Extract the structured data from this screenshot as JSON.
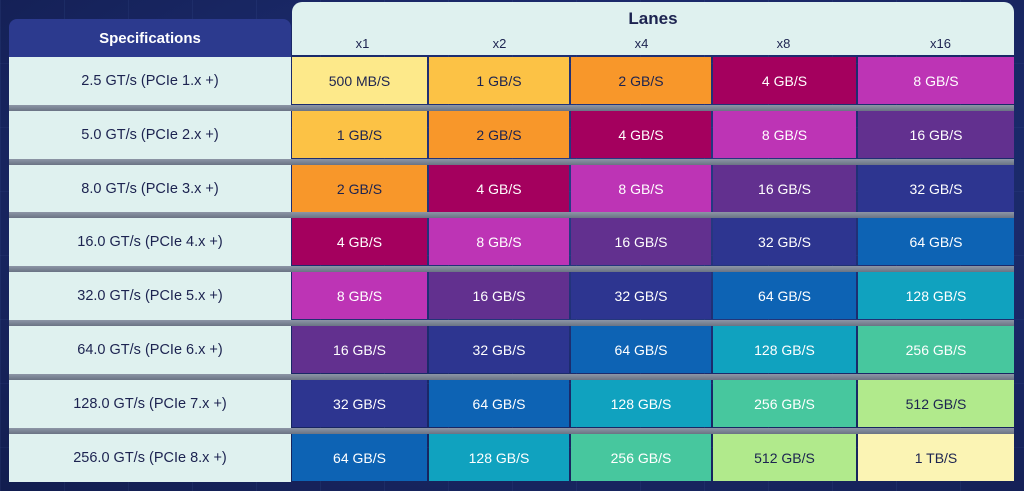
{
  "header": {
    "spec_label": "Specifications",
    "lanes_title": "Lanes",
    "lanes": [
      "x1",
      "x2",
      "x4",
      "x8",
      "x16"
    ]
  },
  "rows": [
    {
      "spec": "2.5 GT/s (PCIe 1.x +)",
      "cells": [
        "500 MB/S",
        "1 GB/S",
        "2 GB/S",
        "4 GB/S",
        "8 GB/S"
      ]
    },
    {
      "spec": "5.0 GT/s (PCIe 2.x +)",
      "cells": [
        "1 GB/S",
        "2 GB/S",
        "4 GB/S",
        "8 GB/S",
        "16 GB/S"
      ]
    },
    {
      "spec": "8.0 GT/s (PCIe 3.x +)",
      "cells": [
        "2 GB/S",
        "4 GB/S",
        "8 GB/S",
        "16 GB/S",
        "32 GB/S"
      ]
    },
    {
      "spec": "16.0 GT/s (PCIe 4.x +)",
      "cells": [
        "4 GB/S",
        "8 GB/S",
        "16 GB/S",
        "32 GB/S",
        "64 GB/S"
      ]
    },
    {
      "spec": "32.0 GT/s (PCIe 5.x +)",
      "cells": [
        "8 GB/S",
        "16 GB/S",
        "32 GB/S",
        "64 GB/S",
        "128 GB/S"
      ]
    },
    {
      "spec": "64.0 GT/s (PCIe 6.x +)",
      "cells": [
        "16 GB/S",
        "32 GB/S",
        "64 GB/S",
        "128 GB/S",
        "256 GB/S"
      ]
    },
    {
      "spec": "128.0 GT/s (PCIe 7.x +)",
      "cells": [
        "32 GB/S",
        "64 GB/S",
        "128 GB/S",
        "256 GB/S",
        "512 GB/S"
      ]
    },
    {
      "spec": "256.0 GT/s (PCIe 8.x +)",
      "cells": [
        "64 GB/S",
        "128 GB/S",
        "256 GB/S",
        "512 GB/S",
        "1 TB/S"
      ]
    }
  ],
  "colors": {
    "500 MB/S": "#fde98a",
    "1 GB/S": "#fcc245",
    "2 GB/S": "#f8972a",
    "4 GB/S": "#a4005e",
    "8 GB/S": "#bd34b5",
    "16 GB/S": "#62308f",
    "32 GB/S": "#2d3590",
    "64 GB/S": "#0d63b4",
    "128 GB/S": "#10a2bf",
    "256 GB/S": "#47c79e",
    "512 GB/S": "#b1ea8c",
    "1 TB/S": "#fbf4b4"
  },
  "dark_text_values": [
    "500 MB/S",
    "1 GB/S",
    "2 GB/S",
    "512 GB/S",
    "1 TB/S"
  ]
}
